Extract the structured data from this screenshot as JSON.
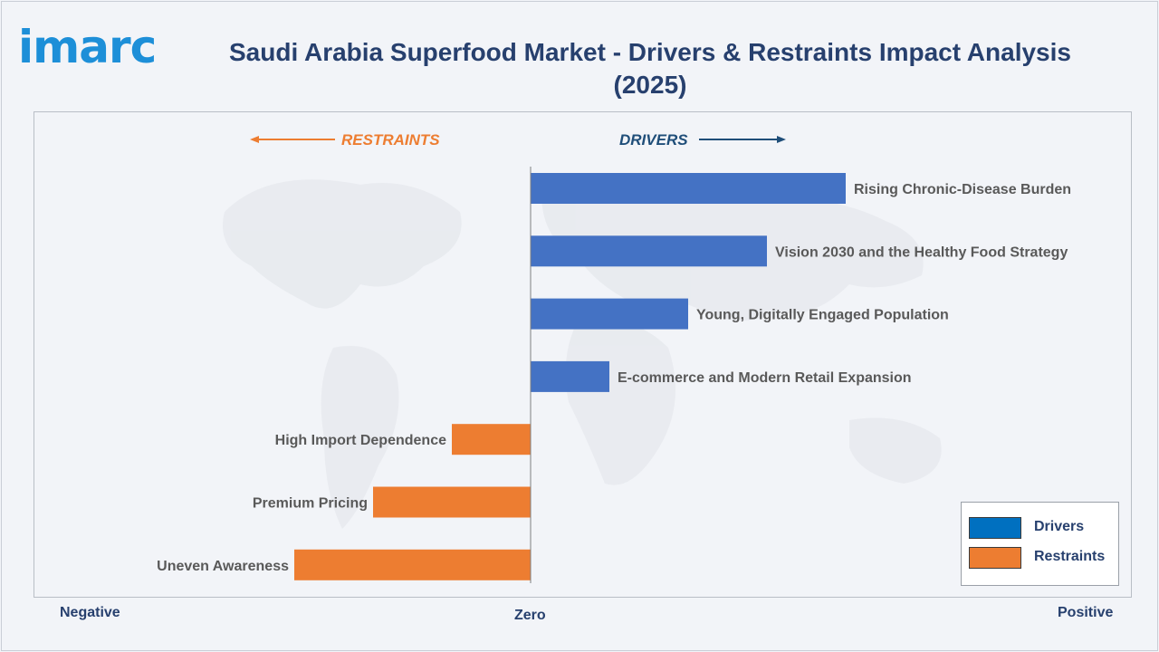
{
  "logo": {
    "text": "imarc"
  },
  "title": "Saudi Arabia Superfood Market - Drivers & Restraints Impact Analysis (2025)",
  "header": {
    "restraints": "RESTRAINTS",
    "drivers": "DRIVERS"
  },
  "axis": {
    "negative": "Negative",
    "zero": "Zero",
    "positive": "Positive"
  },
  "legend": {
    "drivers": "Drivers",
    "restraints": "Restraints"
  },
  "colors": {
    "drivers": "#4472c4",
    "restraints": "#ed7d31",
    "drivers_arrow": "#1f4e79",
    "restraints_arrow": "#ed7d31",
    "label": "#595959",
    "title": "#27406e",
    "legend_drivers": "#0070c0",
    "legend_restraints": "#ed7d31"
  },
  "chart_data": {
    "type": "bar",
    "orientation": "horizontal",
    "grid": false,
    "legend_position": "bottom-right",
    "xlim": [
      -3,
      4
    ],
    "categories": [
      "Rising Chronic-Disease Burden",
      "Vision 2030 and the Healthy Food Strategy",
      "Young, Digitally Engaged Population",
      "E-commerce and Modern Retail Expansion",
      "High Import Dependence",
      "Premium Pricing",
      "Uneven Awareness"
    ],
    "series": [
      {
        "name": "Drivers",
        "values": [
          4,
          3,
          2,
          1,
          null,
          null,
          null
        ]
      },
      {
        "name": "Restraints",
        "values": [
          null,
          null,
          null,
          null,
          -1,
          -2,
          -3
        ]
      }
    ]
  }
}
